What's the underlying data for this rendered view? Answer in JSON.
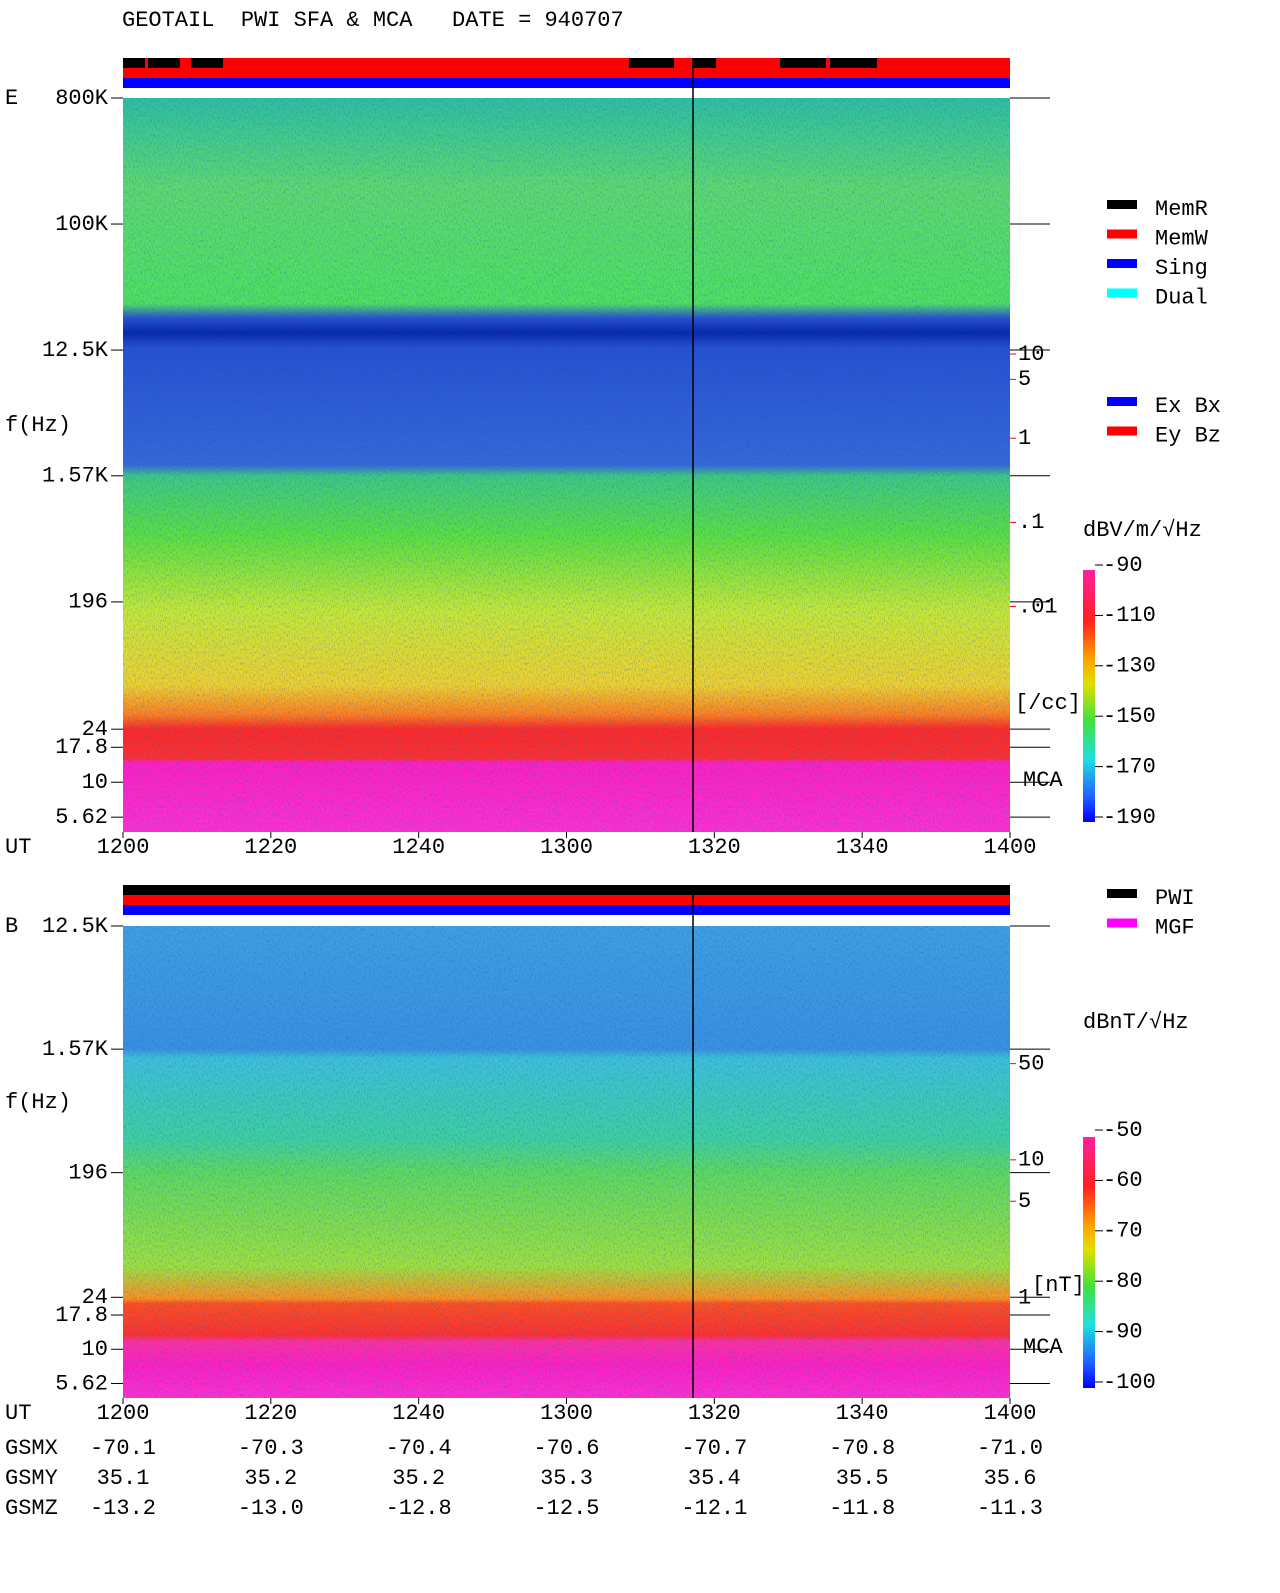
{
  "title": "GEOTAIL  PWI SFA & MCA   DATE = 940707",
  "chart_data": [
    {
      "type": "spectrogram",
      "panel_label": "E",
      "y_label": "f(Hz)",
      "x_label": "UT",
      "log_y": true,
      "ylim": [
        4.4,
        800000
      ],
      "yticks": [
        {
          "value": 800000,
          "label": "800K"
        },
        {
          "value": 100000,
          "label": "100K"
        },
        {
          "value": 12500,
          "label": "12.5K"
        },
        {
          "value": 1570,
          "label": "1.57K"
        },
        196,
        24,
        17.8,
        10,
        5.62
      ],
      "xlim": [
        720,
        840
      ],
      "xticks": [
        {
          "value": 720,
          "label": "1200"
        },
        {
          "value": 740,
          "label": "1220"
        },
        {
          "value": 760,
          "label": "1240"
        },
        {
          "value": 780,
          "label": "1300"
        },
        {
          "value": 800,
          "label": "1320"
        },
        {
          "value": 820,
          "label": "1340"
        },
        {
          "value": 840,
          "label": "1400"
        }
      ],
      "y2_label": "[/cc]",
      "y2_color": "#ff0000",
      "y2lim": [
        2.1e-05,
        11000
      ],
      "y2ticks": [
        10,
        5,
        1,
        {
          "value": 0.1,
          "label": ".1"
        },
        {
          "value": 0.01,
          "label": ".01"
        }
      ],
      "mca_label": "MCA",
      "legend": [
        {
          "name": "MemR",
          "color": "#000000"
        },
        {
          "name": "MemW",
          "color": "#ff0000"
        },
        {
          "name": "Sing",
          "color": "#0000ff"
        },
        {
          "name": "Dual",
          "color": "#00ffff"
        }
      ],
      "legend2": [
        {
          "name": "Ex Bx",
          "color": "#0000ff"
        },
        {
          "name": "Ey Bz",
          "color": "#ff0000"
        }
      ],
      "colorbar_label": "dBV/m/√Hz",
      "clim": [
        -90,
        -190
      ],
      "cticks": [
        -90,
        -110,
        -130,
        -150,
        -170,
        -190
      ]
    },
    {
      "type": "spectrogram",
      "panel_label": "B",
      "y_label": "f(Hz)",
      "x_label": "UT",
      "log_y": true,
      "ylim": [
        4.4,
        12500
      ],
      "yticks": [
        {
          "value": 12500,
          "label": "12.5K"
        },
        {
          "value": 1570,
          "label": "1.57K"
        },
        196,
        24,
        17.8,
        10,
        5.62
      ],
      "xlim": [
        720,
        840
      ],
      "xticks": [
        {
          "value": 720,
          "label": "1200"
        },
        {
          "value": 740,
          "label": "1220"
        },
        {
          "value": 760,
          "label": "1240"
        },
        {
          "value": 780,
          "label": "1300"
        },
        {
          "value": 800,
          "label": "1320"
        },
        {
          "value": 820,
          "label": "1340"
        },
        {
          "value": 840,
          "label": "1400"
        }
      ],
      "y2_label": "[nT]",
      "y2_color": "#ff0000",
      "y2lim": [
        0.186,
        500
      ],
      "y2ticks": [
        50,
        10,
        5,
        1
      ],
      "mca_label": "MCA",
      "legend": [
        {
          "name": "PWI",
          "color": "#000000"
        },
        {
          "name": "MGF",
          "color": "#ff00ff"
        }
      ],
      "colorbar_label": "dBnT/√Hz",
      "clim": [
        -50,
        -100
      ],
      "cticks": [
        -50,
        -60,
        -70,
        -80,
        -90,
        -100
      ]
    }
  ],
  "ephemeris": {
    "rows": [
      {
        "name": "GSMX",
        "values": [
          "-70.1",
          "-70.3",
          "-70.4",
          "-70.6",
          "-70.7",
          "-70.8",
          "-71.0"
        ]
      },
      {
        "name": "GSMY",
        "values": [
          "35.1",
          "35.2",
          "35.2",
          "35.3",
          "35.4",
          "35.5",
          "35.6"
        ]
      },
      {
        "name": "GSMZ",
        "values": [
          "-13.2",
          "-13.0",
          "-12.8",
          "-12.5",
          "-12.1",
          "-11.8",
          "-11.3"
        ]
      }
    ]
  }
}
